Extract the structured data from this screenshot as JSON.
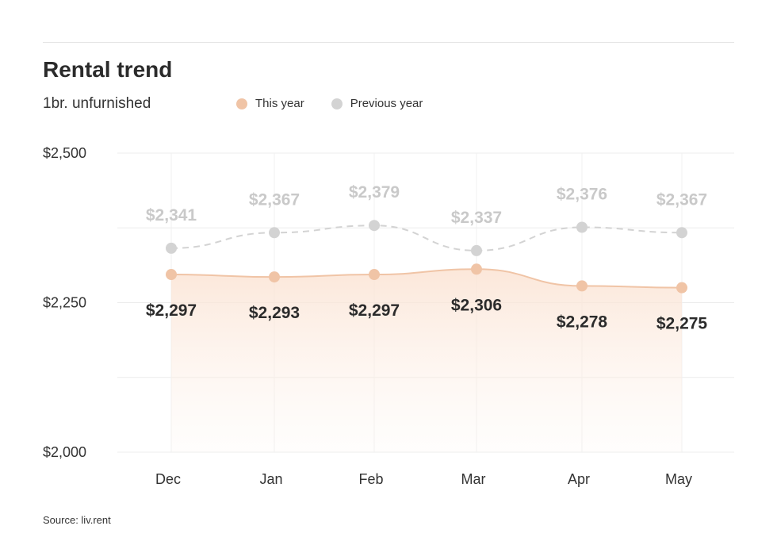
{
  "header": {
    "title": "Rental trend",
    "subtitle": "1br. unfurnished"
  },
  "legend": [
    {
      "label": "This year",
      "color": "#f0c4a6"
    },
    {
      "label": "Previous year",
      "color": "#d3d3d3"
    }
  ],
  "footer": {
    "source": "Source: liv.rent"
  },
  "chart_data": {
    "type": "line",
    "title": "Rental trend",
    "subtitle": "1br. unfurnished",
    "categories": [
      "Dec",
      "Jan",
      "Feb",
      "Mar",
      "Apr",
      "May"
    ],
    "y_ticks": [
      {
        "value": 2000,
        "label": "$2,000"
      },
      {
        "value": 2250,
        "label": "$2,250"
      },
      {
        "value": 2500,
        "label": "$2,500"
      }
    ],
    "ylim": [
      2000,
      2500
    ],
    "grid": true,
    "legend_position": "top",
    "series": [
      {
        "name": "This year",
        "color": "#f0c4a6",
        "values": [
          2297,
          2293,
          2297,
          2306,
          2278,
          2275
        ],
        "labels": [
          "$2,297",
          "$2,293",
          "$2,297",
          "$2,306",
          "$2,278",
          "$2,275"
        ]
      },
      {
        "name": "Previous year",
        "color": "#d3d3d3",
        "values": [
          2341,
          2367,
          2379,
          2337,
          2376,
          2367
        ],
        "labels": [
          "$2,341",
          "$2,367",
          "$2,379",
          "$2,337",
          "$2,376",
          "$2,367"
        ]
      }
    ]
  }
}
